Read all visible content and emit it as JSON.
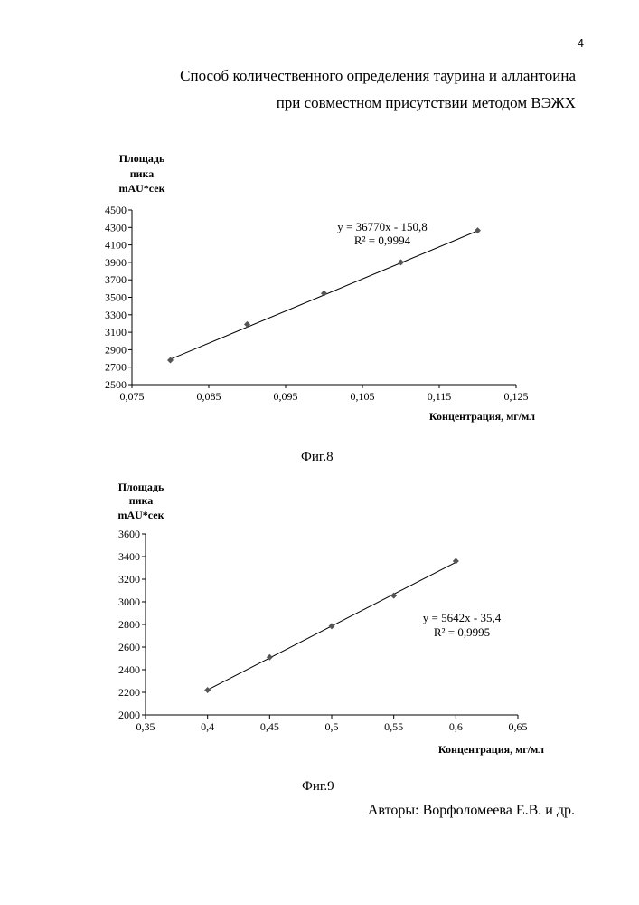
{
  "page_number": "4",
  "title_lines": [
    "Способ количественного определения таурина и аллантоина",
    "при совместном присутствии методом ВЭЖХ"
  ],
  "chart_data": [
    {
      "type": "scatter",
      "ylabel_lines": [
        "Площадь",
        "пика",
        "mAU*сек"
      ],
      "xlabel": "Концентрация, мг/мл",
      "xlim": [
        0.075,
        0.125
      ],
      "ylim": [
        2500,
        4500
      ],
      "x_tick_labels": [
        "0,075",
        "0,085",
        "0,095",
        "0,105",
        "0,115",
        "0,125"
      ],
      "y_tick_labels": [
        "2500",
        "2700",
        "2900",
        "3100",
        "3300",
        "3500",
        "3700",
        "3900",
        "4100",
        "4300",
        "4500"
      ],
      "series": [
        {
          "x": [
            0.08,
            0.09,
            0.1,
            0.11,
            0.12
          ],
          "y": [
            2780,
            3190,
            3545,
            3900,
            4265
          ]
        }
      ],
      "trendline": {
        "slope": 36770,
        "intercept": -150.8
      },
      "equation": "y = 36770x - 150,8",
      "r2": "R² = 0,9994",
      "grid": false,
      "marker_color": "#555555",
      "caption": "Фиг.8"
    },
    {
      "type": "scatter",
      "ylabel_lines": [
        "Площадь",
        "пика",
        "mAU*сек"
      ],
      "xlabel": "Концентрация, мг/мл",
      "xlim": [
        0.35,
        0.65
      ],
      "ylim": [
        2000,
        3600
      ],
      "x_tick_labels": [
        "0,35",
        "0,4",
        "0,45",
        "0,5",
        "0,55",
        "0,6",
        "0,65"
      ],
      "y_tick_labels": [
        "2000",
        "2200",
        "2400",
        "2600",
        "2800",
        "3000",
        "3200",
        "3400",
        "3600"
      ],
      "series": [
        {
          "x": [
            0.4,
            0.45,
            0.5,
            0.55,
            0.6
          ],
          "y": [
            2220,
            2510,
            2785,
            3055,
            3360
          ]
        }
      ],
      "trendline": {
        "slope": 5642,
        "intercept": -35.4
      },
      "equation": "y = 5642x - 35,4",
      "r2": "R² = 0,9995",
      "grid": false,
      "marker_color": "#555555",
      "caption": "Фиг.9"
    }
  ],
  "authors": "Авторы: Ворфоломеева Е.В. и др."
}
